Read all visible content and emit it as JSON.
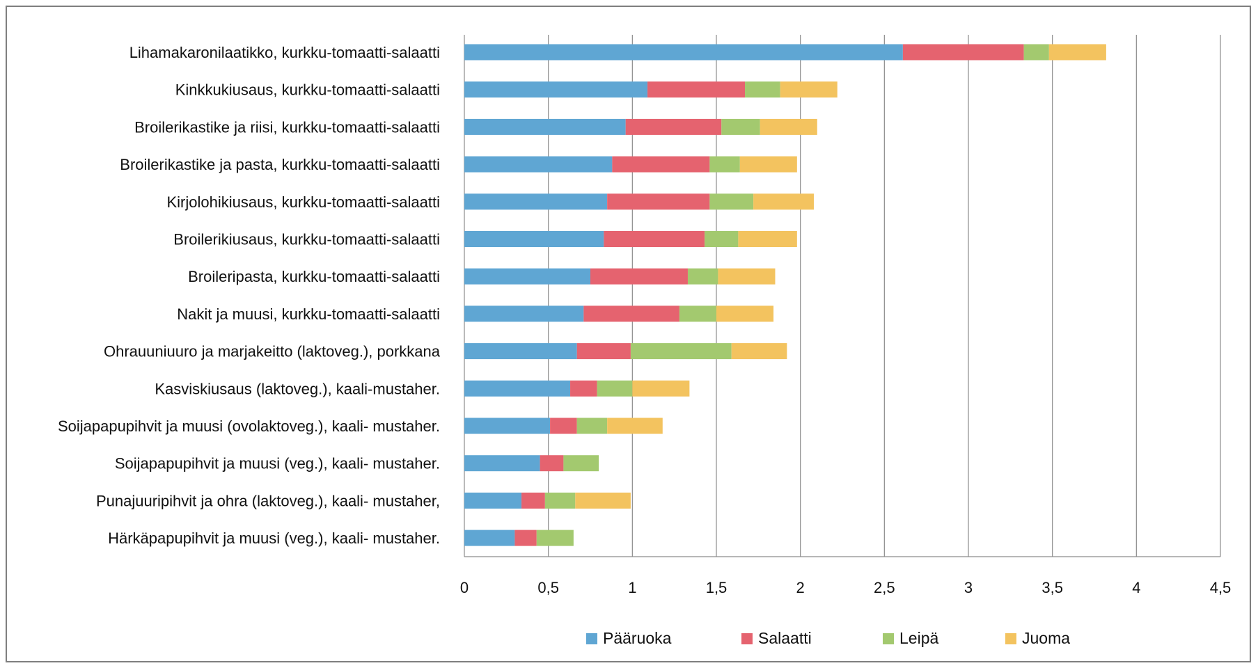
{
  "chart_data": {
    "type": "bar",
    "orientation": "horizontal",
    "stacked": true,
    "title": "",
    "xlabel": "",
    "ylabel": "",
    "xlim": [
      0,
      4.5
    ],
    "xticks": [
      "0",
      "0,5",
      "1",
      "1,5",
      "2",
      "2,5",
      "3",
      "3,5",
      "4",
      "4,5"
    ],
    "xtick_values": [
      0,
      0.5,
      1,
      1.5,
      2,
      2.5,
      3,
      3.5,
      4,
      4.5
    ],
    "grid": "vertical",
    "legend_position": "bottom",
    "categories": [
      "Lihamakaronilaatikko, kurkku-tomaatti-salaatti",
      "Kinkkukiusaus, kurkku-tomaatti-salaatti",
      "Broilerikastike ja riisi, kurkku-tomaatti-salaatti",
      "Broilerikastike ja pasta, kurkku-tomaatti-salaatti",
      "Kirjolohikiusaus, kurkku-tomaatti-salaatti",
      "Broilerikiusaus, kurkku-tomaatti-salaatti",
      "Broileripasta, kurkku-tomaatti-salaatti",
      "Nakit ja muusi, kurkku-tomaatti-salaatti",
      "Ohrauuniuuro ja marjakeitto (laktoveg.), porkkana",
      "Kasviskiusaus (laktoveg.), kaali-mustaher.",
      "Soijapapupihvit ja muusi (ovolaktoveg.), kaali- mustaher.",
      "Soijapapupihvit ja muusi (veg.), kaali- mustaher.",
      "Punajuuripihvit ja ohra (laktoveg.), kaali- mustaher,",
      "Härkäpapupihvit ja muusi (veg.), kaali- mustaher."
    ],
    "series": [
      {
        "name": "Pääruoka",
        "color": "#5fa6d3",
        "values": [
          2.61,
          1.09,
          0.96,
          0.88,
          0.85,
          0.83,
          0.75,
          0.71,
          0.67,
          0.63,
          0.51,
          0.45,
          0.34,
          0.3
        ]
      },
      {
        "name": "Salaatti",
        "color": "#e5636f",
        "values": [
          0.72,
          0.58,
          0.57,
          0.58,
          0.61,
          0.6,
          0.58,
          0.57,
          0.32,
          0.16,
          0.16,
          0.14,
          0.14,
          0.13
        ]
      },
      {
        "name": "Leipä",
        "color": "#a3c96f",
        "values": [
          0.15,
          0.21,
          0.23,
          0.18,
          0.26,
          0.2,
          0.18,
          0.22,
          0.6,
          0.21,
          0.18,
          0.21,
          0.18,
          0.22
        ]
      },
      {
        "name": "Juoma",
        "color": "#f3c35f",
        "values": [
          0.34,
          0.34,
          0.34,
          0.34,
          0.36,
          0.35,
          0.34,
          0.34,
          0.33,
          0.34,
          0.33,
          0.0,
          0.33,
          0.0
        ]
      }
    ]
  }
}
